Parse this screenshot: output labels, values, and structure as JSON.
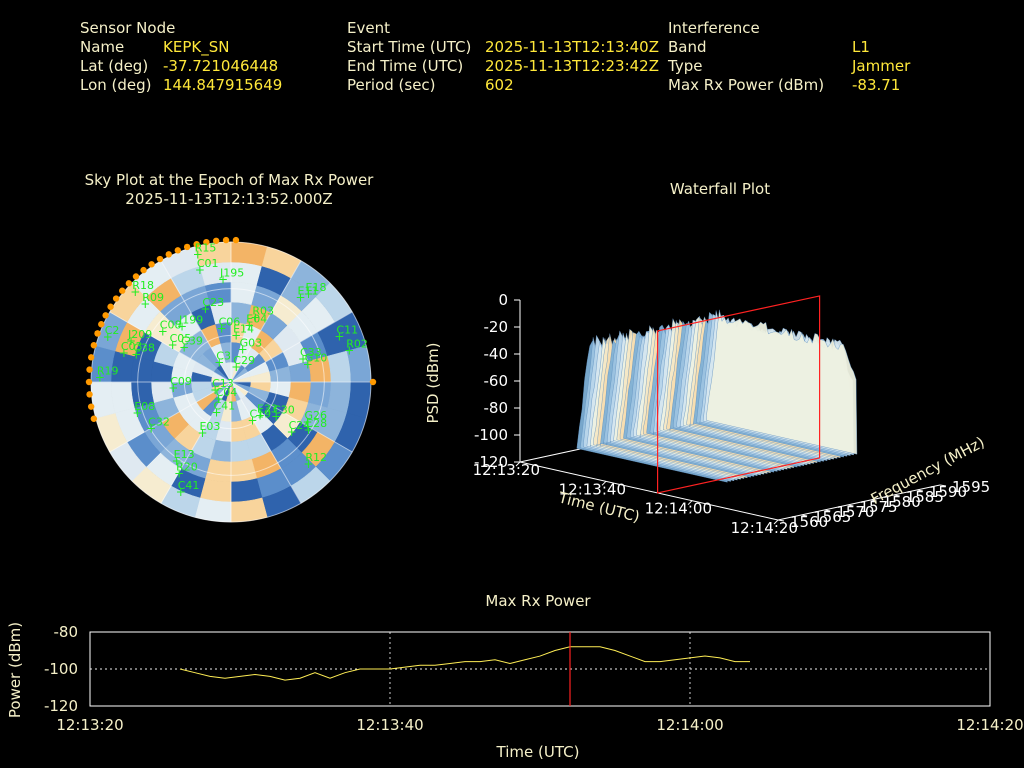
{
  "header": {
    "sensor": {
      "heading": "Sensor Node",
      "rows": [
        {
          "label": "Name",
          "value": "KEPK_SN"
        },
        {
          "label": "Lat (deg)",
          "value": "-37.721046448"
        },
        {
          "label": "Lon (deg)",
          "value": "144.847915649"
        }
      ]
    },
    "event": {
      "heading": "Event",
      "rows": [
        {
          "label": "Start Time (UTC)",
          "value": "2025-11-13T12:13:40Z"
        },
        {
          "label": "End Time (UTC)",
          "value": "2025-11-13T12:23:42Z"
        },
        {
          "label": "Period (sec)",
          "value": "602"
        }
      ]
    },
    "interference": {
      "heading": "Interference",
      "rows": [
        {
          "label": "Band",
          "value": "L1"
        },
        {
          "label": "Type",
          "value": "Jammer"
        },
        {
          "label": "Max Rx Power (dBm)",
          "value": "-83.71"
        }
      ]
    }
  },
  "colors": {
    "satellite_label": "#22ee22",
    "orange_marker": "#ff9900",
    "marker_line": "#ff2222",
    "power_line": "#ffee55"
  },
  "chart_data": [
    {
      "type": "scatter",
      "kind": "polar-sky-plot",
      "title": "Sky Plot at the Epoch of Max Rx Power",
      "subtitle": "2025-11-13T12:13:52.000Z",
      "satellites": [
        {
          "id": "R15",
          "az": 345,
          "el": 5
        },
        {
          "id": "C01",
          "az": 344,
          "el": 15
        },
        {
          "id": "J195",
          "az": 355,
          "el": 24
        },
        {
          "id": "R18",
          "az": 313,
          "el": 5
        },
        {
          "id": "R09",
          "az": 312,
          "el": 15
        },
        {
          "id": "C23",
          "az": 340,
          "el": 40
        },
        {
          "id": "J199",
          "az": 318,
          "el": 42
        },
        {
          "id": "C06",
          "az": 349,
          "el": 55
        },
        {
          "id": "E04",
          "az": 17,
          "el": 52
        },
        {
          "id": "R03",
          "az": 20,
          "el": 46
        },
        {
          "id": "E18",
          "az": 41,
          "el": 15
        },
        {
          "id": "E11",
          "az": 39,
          "el": 20
        },
        {
          "id": "E14",
          "az": 5,
          "el": 60
        },
        {
          "id": "C08",
          "az": 306,
          "el": 35
        },
        {
          "id": "C05",
          "az": 302,
          "el": 45
        },
        {
          "id": "C39",
          "az": 306,
          "el": 52
        },
        {
          "id": "C2",
          "az": 290,
          "el": 5
        },
        {
          "id": "J209",
          "az": 292,
          "el": 20
        },
        {
          "id": "C03",
          "az": 285,
          "el": 18
        },
        {
          "id": "C38",
          "az": 286,
          "el": 26
        },
        {
          "id": "G03",
          "az": 18,
          "el": 68
        },
        {
          "id": "C11",
          "az": 67,
          "el": 15
        },
        {
          "id": "R02",
          "az": 75,
          "el": 12
        },
        {
          "id": "C33",
          "az": 72,
          "el": 42
        },
        {
          "id": "G10",
          "az": 77,
          "el": 40
        },
        {
          "id": "C3",
          "az": 327,
          "el": 75
        },
        {
          "id": "C29",
          "az": 16,
          "el": 80
        },
        {
          "id": "R19",
          "az": 272,
          "el": 5
        },
        {
          "id": "C09",
          "az": 264,
          "el": 52
        },
        {
          "id": "C13",
          "az": 245,
          "el": 78
        },
        {
          "id": "C04",
          "az": 218,
          "el": 76
        },
        {
          "id": "E08",
          "az": 252,
          "el": 26
        },
        {
          "id": "C41",
          "az": 207,
          "el": 68
        },
        {
          "id": "C32",
          "az": 240,
          "el": 30
        },
        {
          "id": "E03",
          "az": 210,
          "el": 52
        },
        {
          "id": "G26",
          "az": 118,
          "el": 35
        },
        {
          "id": "C19",
          "az": 152,
          "el": 62
        },
        {
          "id": "C30",
          "az": 128,
          "el": 54
        },
        {
          "id": "C24",
          "az": 130,
          "el": 40
        },
        {
          "id": "C28",
          "az": 122,
          "el": 32
        },
        {
          "id": "E13",
          "az": 215,
          "el": 28
        },
        {
          "id": "R20",
          "az": 210,
          "el": 22
        },
        {
          "id": "R12",
          "az": 137,
          "el": 18
        },
        {
          "id": "C41",
          "az": 205,
          "el": 12
        },
        {
          "id": "E33",
          "az": 140,
          "el": 62
        }
      ]
    },
    {
      "type": "area",
      "kind": "3d-waterfall",
      "title": "Waterfall Plot",
      "xlabel": "Time (UTC)",
      "ylabel": "Frequency (MHz)",
      "zlabel": "PSD (dBm)",
      "x_ticks": [
        "12:13:20",
        "12:13:40",
        "12:14:00",
        "12:14:20"
      ],
      "y_ticks": [
        1560,
        1565,
        1570,
        1575,
        1580,
        1585,
        1590,
        1595
      ],
      "z_ticks": [
        0,
        -20,
        -40,
        -60,
        -80,
        -100,
        -120
      ],
      "xlim": [
        "12:13:20",
        "12:14:20"
      ],
      "ylim": [
        1560,
        1595
      ],
      "zlim": [
        -120,
        0
      ],
      "marker_time": "12:13:52",
      "noise_floor_dbm": -100,
      "peak_psd_dbm": -20
    },
    {
      "type": "line",
      "title": "Max Rx Power",
      "xlabel": "Time (UTC)",
      "ylabel": "Power (dBm)",
      "x_ticks": [
        "12:13:20",
        "12:13:40",
        "12:14:00",
        "12:14:20"
      ],
      "y_ticks": [
        -80,
        -100,
        -120
      ],
      "ylim": [
        -120,
        -80
      ],
      "marker_time": "12:13:52",
      "x": [
        "12:13:26",
        "12:13:27",
        "12:13:28",
        "12:13:29",
        "12:13:30",
        "12:13:31",
        "12:13:32",
        "12:13:33",
        "12:13:34",
        "12:13:35",
        "12:13:36",
        "12:13:37",
        "12:13:38",
        "12:13:39",
        "12:13:40",
        "12:13:41",
        "12:13:42",
        "12:13:43",
        "12:13:44",
        "12:13:45",
        "12:13:46",
        "12:13:47",
        "12:13:48",
        "12:13:49",
        "12:13:50",
        "12:13:51",
        "12:13:52",
        "12:13:53",
        "12:13:54",
        "12:13:55",
        "12:13:56",
        "12:13:57",
        "12:13:58",
        "12:13:59",
        "12:14:00",
        "12:14:01",
        "12:14:02",
        "12:14:03",
        "12:14:04"
      ],
      "series": [
        {
          "values": [
            -100,
            -102,
            -104,
            -105,
            -104,
            -103,
            -104,
            -106,
            -105,
            -102,
            -105,
            -102,
            -100,
            -100,
            -100,
            -99,
            -98,
            -98,
            -97,
            -96,
            -96,
            -95,
            -97,
            -95,
            -93,
            -90,
            -88,
            -88,
            -88,
            -90,
            -93,
            -96,
            -96,
            -95,
            -94,
            -93,
            -94,
            -96,
            -96
          ]
        }
      ]
    }
  ]
}
